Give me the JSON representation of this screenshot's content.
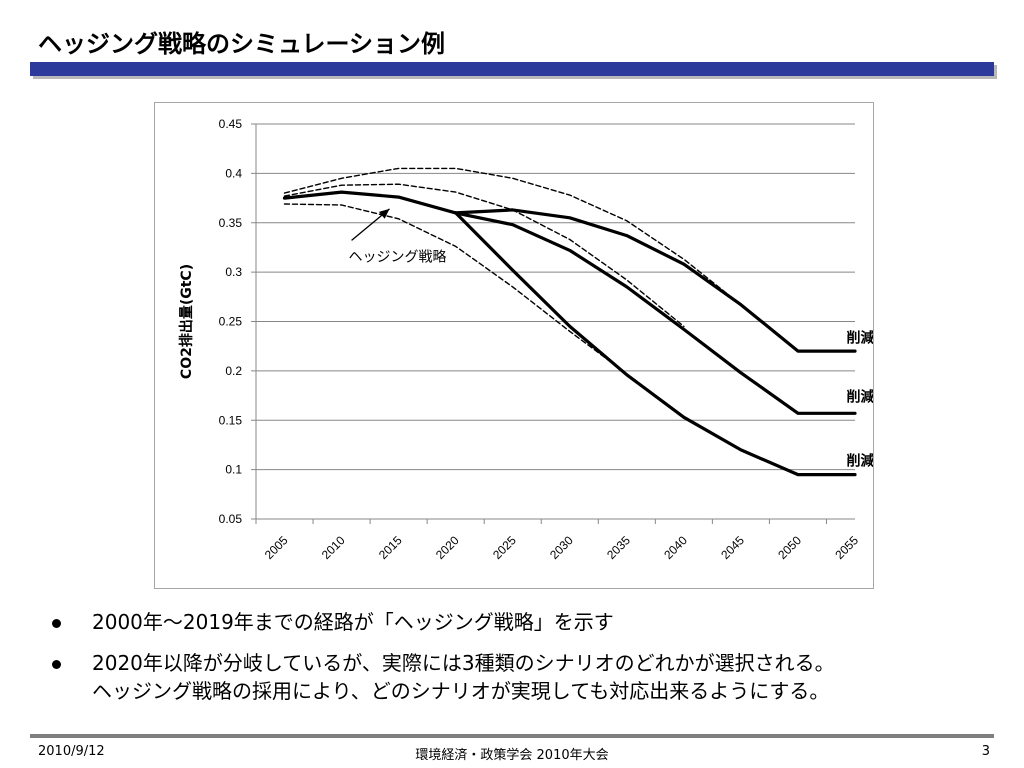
{
  "slide": {
    "title": "ヘッジング戦略のシミュレーション例"
  },
  "chart_data": {
    "type": "line",
    "title": "",
    "xlabel": "",
    "ylabel": "CO2排出量(GtC)",
    "x": [
      2005,
      2010,
      2015,
      2020,
      2025,
      2030,
      2035,
      2040,
      2045,
      2050,
      2055
    ],
    "ylim": [
      0.05,
      0.45
    ],
    "yticks": [
      "0.05",
      "0.1",
      "0.15",
      "0.2",
      "0.25",
      "0.3",
      "0.35",
      "0.4",
      "0.45"
    ],
    "xticks": [
      "2005",
      "2010",
      "2015",
      "2020",
      "2025",
      "2030",
      "2035",
      "2040",
      "2045",
      "2050",
      "2055"
    ],
    "grid": true,
    "legend": "none",
    "series": [
      {
        "name": "",
        "style": "solid",
        "color": "#000000",
        "points": [
          [
            2005,
            0.375
          ],
          [
            2010,
            0.381
          ],
          [
            2015,
            0.376
          ],
          [
            2020,
            0.36
          ]
        ]
      },
      {
        "name": "削減量小",
        "style": "solid",
        "color": "#000000",
        "points": [
          [
            2020,
            0.36
          ],
          [
            2025,
            0.363
          ],
          [
            2030,
            0.355
          ],
          [
            2035,
            0.337
          ],
          [
            2040,
            0.308
          ],
          [
            2045,
            0.267
          ],
          [
            2050,
            0.22
          ],
          [
            2055,
            0.22
          ]
        ]
      },
      {
        "name": "削減量中",
        "style": "solid",
        "color": "#000000",
        "points": [
          [
            2020,
            0.36
          ],
          [
            2025,
            0.348
          ],
          [
            2030,
            0.322
          ],
          [
            2035,
            0.285
          ],
          [
            2040,
            0.242
          ],
          [
            2045,
            0.198
          ],
          [
            2050,
            0.157
          ],
          [
            2055,
            0.157
          ]
        ]
      },
      {
        "name": "削減量大",
        "style": "solid",
        "color": "#000000",
        "points": [
          [
            2020,
            0.36
          ],
          [
            2025,
            0.302
          ],
          [
            2030,
            0.245
          ],
          [
            2035,
            0.196
          ],
          [
            2040,
            0.153
          ],
          [
            2045,
            0.12
          ],
          [
            2050,
            0.095
          ],
          [
            2055,
            0.095
          ]
        ]
      },
      {
        "name": "",
        "style": "dashed",
        "color": "#000000",
        "points": [
          [
            2005,
            0.38
          ],
          [
            2010,
            0.395
          ],
          [
            2015,
            0.405
          ],
          [
            2020,
            0.405
          ],
          [
            2025,
            0.395
          ],
          [
            2030,
            0.378
          ],
          [
            2035,
            0.352
          ],
          [
            2040,
            0.313
          ],
          [
            2045,
            0.267
          ]
        ]
      },
      {
        "name": "",
        "style": "dashed",
        "color": "#000000",
        "points": [
          [
            2005,
            0.377
          ],
          [
            2010,
            0.388
          ],
          [
            2015,
            0.389
          ],
          [
            2020,
            0.381
          ],
          [
            2025,
            0.363
          ],
          [
            2030,
            0.333
          ],
          [
            2035,
            0.292
          ],
          [
            2040,
            0.245
          ]
        ]
      },
      {
        "name": "",
        "style": "dashed",
        "color": "#000000",
        "points": [
          [
            2005,
            0.369
          ],
          [
            2010,
            0.368
          ],
          [
            2015,
            0.354
          ],
          [
            2020,
            0.326
          ],
          [
            2025,
            0.285
          ],
          [
            2030,
            0.24
          ],
          [
            2035,
            0.197
          ]
        ]
      }
    ],
    "annotations": [
      {
        "text": "ヘッジング戦略",
        "x": 2014.9,
        "y": 0.316,
        "arrow_to": [
          2014.2,
          0.364
        ]
      },
      {
        "text": "削減量小",
        "x": 2057.5,
        "y": 0.234
      },
      {
        "text": "削減量中",
        "x": 2057.5,
        "y": 0.174
      },
      {
        "text": "削減量大",
        "x": 2057.5,
        "y": 0.109
      }
    ]
  },
  "bullets": [
    {
      "lines": [
        "2000年〜2019年までの経路が「ヘッジング戦略」を示す"
      ]
    },
    {
      "lines": [
        "2020年以降が分岐しているが、実際には3種類のシナリオのどれかが選択される。",
        "ヘッジング戦略の採用により、どのシナリオが実現しても対応出来るようにする。"
      ]
    }
  ],
  "footer": {
    "date": "2010/9/12",
    "center": "環境経済・政策学会 2010年大会",
    "page": "3"
  }
}
